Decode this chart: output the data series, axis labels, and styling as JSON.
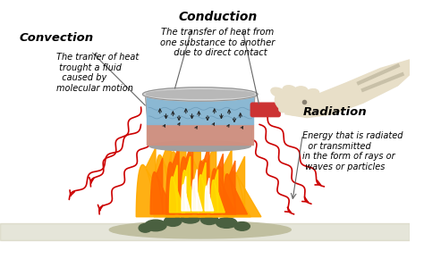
{
  "background_color": "#ffffff",
  "convection_title": "Convection",
  "convection_text": "The tranfer of heat\n trought a fluid\n  caused by\nmolecular motion",
  "conduction_title": "Conduction",
  "conduction_text": "The transfer of heat from\none substance to another\n  due to direct contact",
  "radiation_title": "Radiation",
  "radiation_text": "Energy that is radiated\n  or transmitted\nin the form of rays or\n waves or particles",
  "pot_color": "#c8c8c8",
  "water_top_color": "#8ab8d8",
  "water_bot_color": "#d09088",
  "handle_color": "#cc3333",
  "hand_color": "#e8dfc8",
  "flame_outer": "#ffaa00",
  "flame_mid": "#ff6600",
  "flame_inner": "#ffee44",
  "wave_color": "#cc0000",
  "arrow_color": "#333333",
  "line_color": "#666666",
  "ground_color": "#c0bfa0",
  "rock_color": "#607060"
}
